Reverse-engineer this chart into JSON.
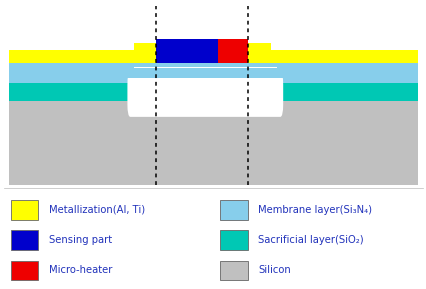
{
  "bg_color": "#ffffff",
  "text_color": "#2233bb",
  "colors": {
    "silicon": "#c0c0c0",
    "sacrificial": "#00c8b4",
    "membrane": "#87ceeb",
    "metallization": "#ffff00",
    "sensing": "#0000cc",
    "heater": "#ee0000",
    "white": "#ffffff"
  },
  "legend": [
    {
      "label": "Metallization(Al, Ti)",
      "color": "#ffff00",
      "col": 0
    },
    {
      "label": "Sensing part",
      "color": "#0000cc",
      "col": 0
    },
    {
      "label": "Micro-heater",
      "color": "#ee0000",
      "col": 0
    },
    {
      "label": "Membrane layer(Si₃N₄)",
      "color": "#87ceeb",
      "col": 1
    },
    {
      "label": "Sacrificial layer(SiO₂)",
      "color": "#00c8b4",
      "col": 1
    },
    {
      "label": "Silicon",
      "color": "#c0c0c0",
      "col": 1
    }
  ]
}
